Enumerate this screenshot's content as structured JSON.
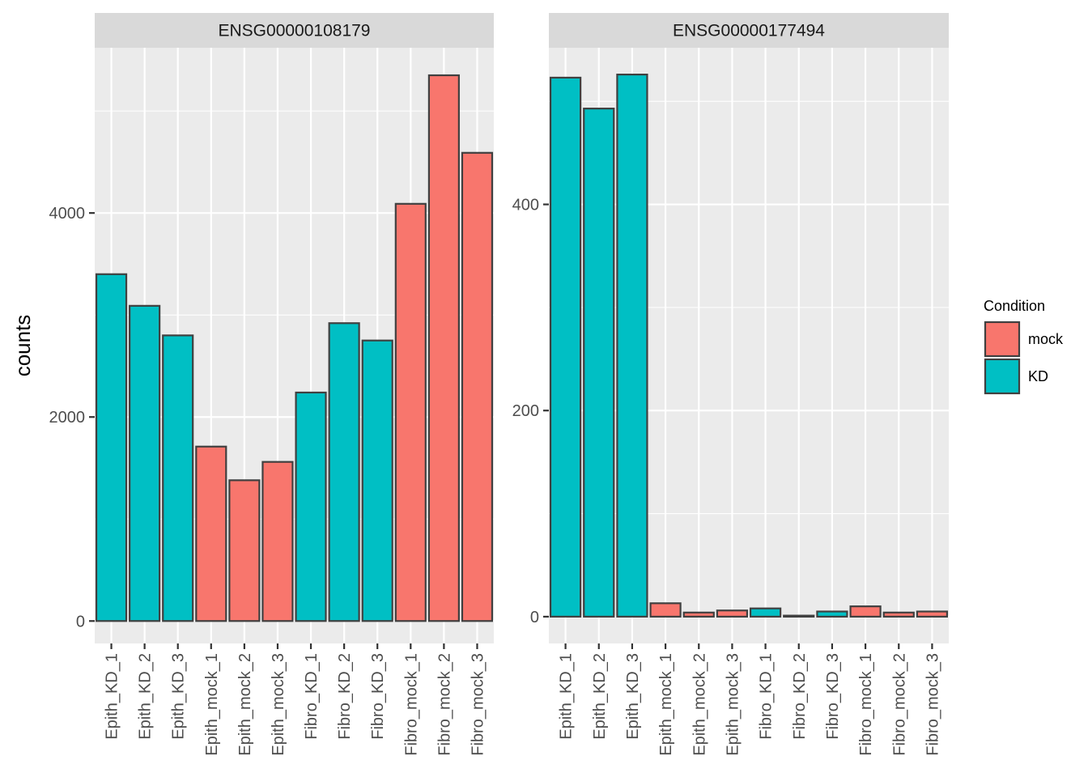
{
  "chart_data": {
    "type": "bar",
    "ylabel": "counts",
    "xlabel": "",
    "legend": {
      "title": "Condition",
      "position": "right",
      "entries": [
        {
          "label": "mock",
          "color": "#F8766D"
        },
        {
          "label": "KD",
          "color": "#00BFC4"
        }
      ]
    },
    "categories": [
      "Epith_KD_1",
      "Epith_KD_2",
      "Epith_KD_3",
      "Epith_mock_1",
      "Epith_mock_2",
      "Epith_mock_3",
      "Fibro_KD_1",
      "Fibro_KD_2",
      "Fibro_KD_3",
      "Fibro_mock_1",
      "Fibro_mock_2",
      "Fibro_mock_3"
    ],
    "conditions": [
      "KD",
      "KD",
      "KD",
      "mock",
      "mock",
      "mock",
      "KD",
      "KD",
      "KD",
      "mock",
      "mock",
      "mock"
    ],
    "grid": true,
    "panels": [
      {
        "title": "ENSG00000108179",
        "values": [
          3400,
          3090,
          2800,
          1710,
          1380,
          1560,
          2240,
          2920,
          2750,
          4090,
          5350,
          4590
        ],
        "ylim": [
          -220,
          5620
        ],
        "yticks": [
          0,
          2000,
          4000
        ],
        "yticklabels": [
          "0",
          "2000",
          "4000"
        ],
        "yminor": [
          1000,
          3000,
          5000
        ]
      },
      {
        "title": "ENSG00000177494",
        "values": [
          523,
          493,
          526,
          13,
          4,
          6,
          8,
          1,
          5,
          10,
          4,
          5
        ],
        "ylim": [
          -26,
          552
        ],
        "yticks": [
          0,
          200,
          400
        ],
        "yticklabels": [
          "0",
          "200",
          "400"
        ],
        "yminor": [
          100,
          300,
          500
        ]
      }
    ]
  }
}
